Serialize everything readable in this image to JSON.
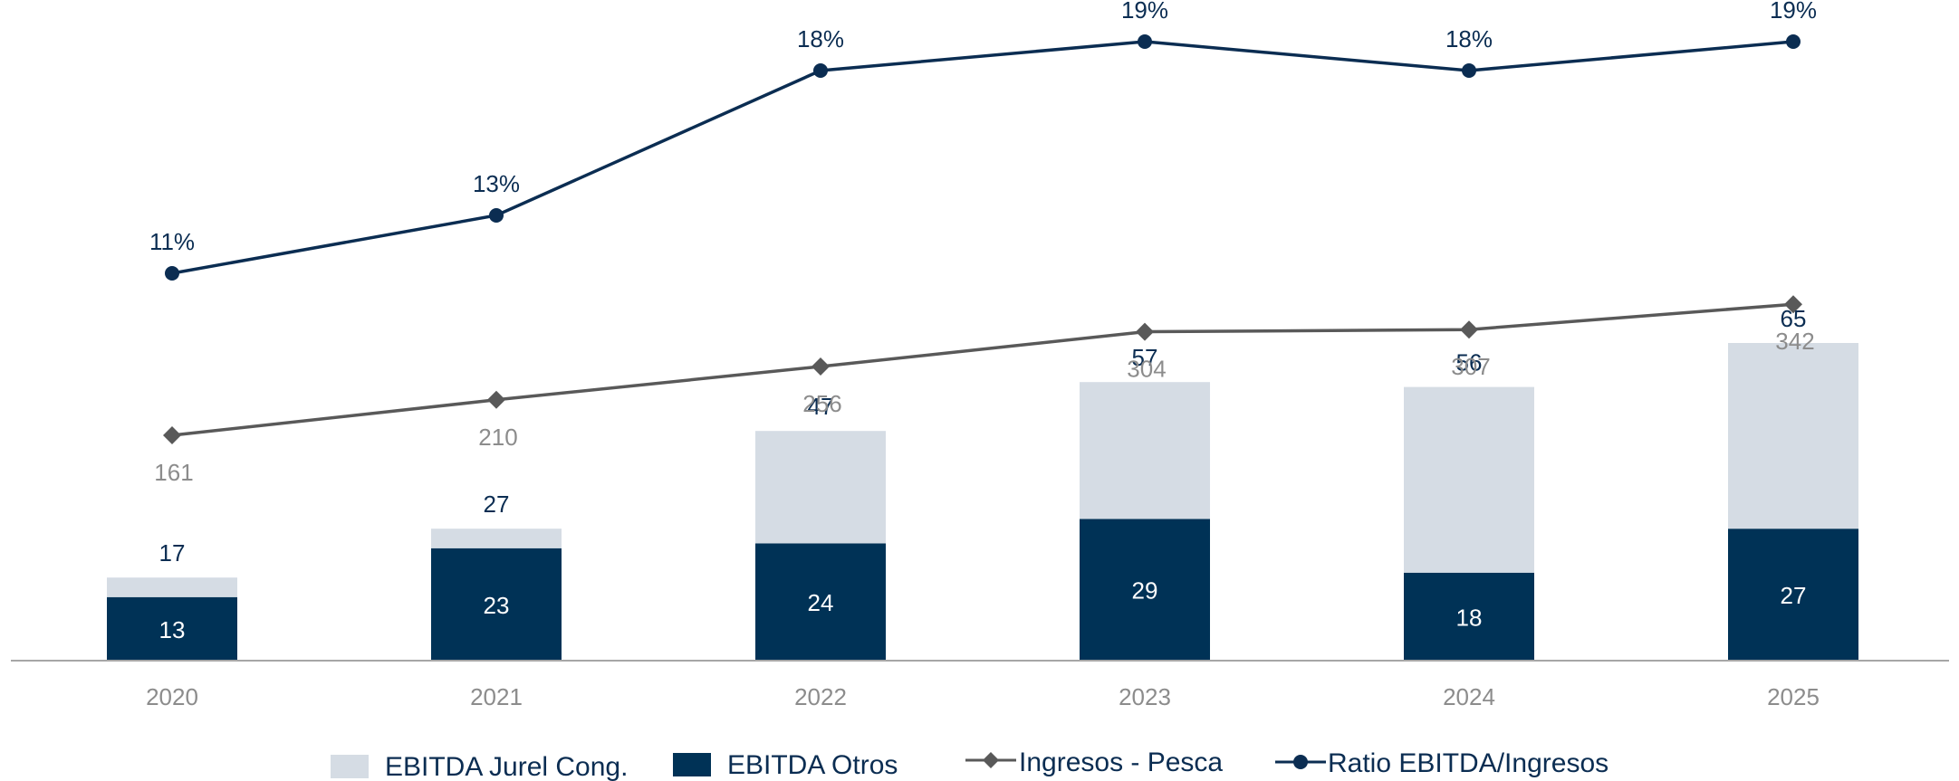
{
  "colors": {
    "jurel": "#d5dce4",
    "otros": "#003256",
    "ingresos": "#595959",
    "ratio": "#0b2d52",
    "axis": "#a6a6a6"
  },
  "legend": {
    "jurel": "EBITDA Jurel Cong.",
    "otros": "EBITDA Otros",
    "ingresos": "Ingresos - Pesca",
    "ratio": "Ratio EBITDA/Ingresos"
  },
  "chart_data": {
    "type": "bar",
    "categories": [
      "2020",
      "2021",
      "2022",
      "2023",
      "2024",
      "2025"
    ],
    "series": [
      {
        "name": "EBITDA Otros",
        "type": "bar",
        "values": [
          13,
          23,
          24,
          29,
          18,
          27
        ]
      },
      {
        "name": "EBITDA Jurel Cong.",
        "type": "bar",
        "values": [
          4,
          4,
          23,
          28,
          38,
          38
        ]
      },
      {
        "name": "Ingresos - Pesca",
        "type": "line",
        "values": [
          161,
          210,
          256,
          304,
          307,
          342
        ]
      },
      {
        "name": "Ratio EBITDA/Ingresos",
        "type": "line",
        "values": [
          0.11,
          0.13,
          0.18,
          0.19,
          0.18,
          0.19
        ]
      }
    ],
    "bar_totals": [
      17,
      27,
      47,
      57,
      56,
      65
    ],
    "ratio_labels": [
      "11%",
      "13%",
      "18%",
      "19%",
      "18%",
      "19%"
    ],
    "ingresos_labels": [
      "161",
      "210",
      "256",
      "304",
      "307",
      "342"
    ],
    "legend_position": "bottom",
    "grid": false
  }
}
